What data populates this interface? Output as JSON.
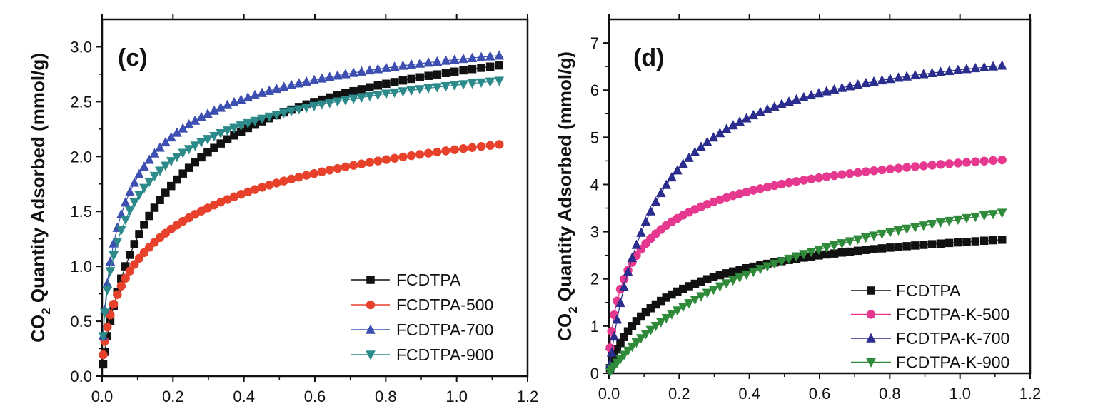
{
  "chart_data": [
    {
      "type": "scatter",
      "panel_label": "(c)",
      "ylabel_prefix": "CO",
      "ylabel_sub": "2",
      "ylabel_rest": " Quantity Adsorbed (mmol/g)",
      "xlabel": "",
      "xlim": [
        0,
        1.2
      ],
      "ylim": [
        0,
        3.25
      ],
      "xticks": [
        "0.0",
        "0.2",
        "0.4",
        "0.6",
        "0.8",
        "1.0",
        "1.2"
      ],
      "yticks": [
        "0.0",
        "0.5",
        "1.0",
        "1.5",
        "2.0",
        "2.5",
        "3.0"
      ],
      "legend_position": "bottom-right",
      "grid": false,
      "series": [
        {
          "name": "FCDTPA",
          "marker": "square",
          "color": "#111111",
          "a": 4.9,
          "b": 0.82,
          "ymax": 2.83
        },
        {
          "name": "FCDTPA-500",
          "marker": "circle",
          "color": "#e8412b",
          "a": 3.1,
          "b": 0.58,
          "ymax": 2.11
        },
        {
          "name": "FCDTPA-700",
          "marker": "triangle-up",
          "color": "#3d4fb0",
          "a": 11.0,
          "b": 0.63,
          "ymax": 2.92
        },
        {
          "name": "FCDTPA-900",
          "marker": "triangle-down",
          "color": "#2d8a8a",
          "a": 8.5,
          "b": 0.58,
          "ymax": 2.69
        }
      ]
    },
    {
      "type": "scatter",
      "panel_label": "(d)",
      "ylabel_prefix": "CO",
      "ylabel_sub": "2",
      "ylabel_rest": " Quantity Adsorbed (mmol/g)",
      "xlabel": "",
      "xlim": [
        0,
        1.2
      ],
      "ylim": [
        0,
        7.5
      ],
      "xticks": [
        "0.0",
        "0.2",
        "0.4",
        "0.6",
        "0.8",
        "1.0",
        "1.2"
      ],
      "yticks": [
        "0",
        "1",
        "2",
        "3",
        "4",
        "5",
        "6",
        "7"
      ],
      "legend_position": "bottom-right",
      "grid": false,
      "series": [
        {
          "name": "FCDTPA",
          "marker": "square",
          "color": "#111111",
          "a": 4.9,
          "b": 0.82,
          "ymax": 2.83
        },
        {
          "name": "FCDTPA-K-500",
          "marker": "circle",
          "color": "#e6388f",
          "a": 9.0,
          "b": 0.62,
          "ymax": 4.52
        },
        {
          "name": "FCDTPA-K-700",
          "marker": "triangle-up",
          "color": "#2b2d8e",
          "a": 7.2,
          "b": 0.95,
          "ymax": 6.52
        },
        {
          "name": "FCDTPA-K-900",
          "marker": "triangle-down",
          "color": "#2f8a3a",
          "a": 1.6,
          "b": 0.95,
          "ymax": 3.4
        }
      ]
    }
  ]
}
